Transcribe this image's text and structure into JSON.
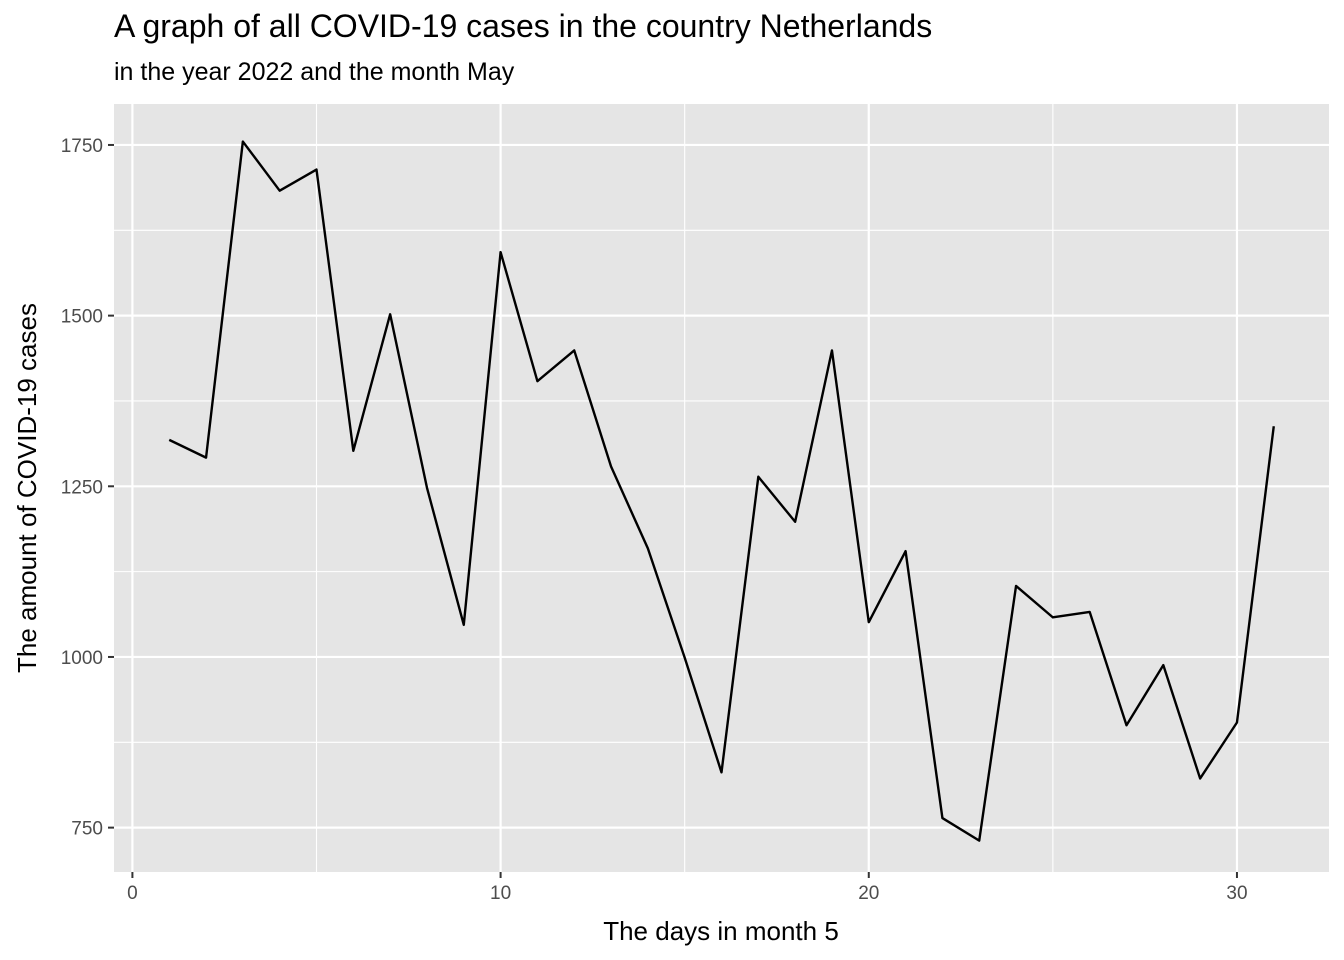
{
  "chart_data": {
    "type": "line",
    "title": "A graph of all COVID-19 cases in the country Netherlands",
    "subtitle": "in the year 2022 and the month May",
    "xlabel": "The days in month 5",
    "ylabel": "The amount of COVID-19 cases",
    "xlim": [
      -0.5,
      32.5
    ],
    "ylim": [
      685,
      1810
    ],
    "x_ticks": [
      0,
      10,
      20,
      30
    ],
    "y_ticks": [
      750,
      1000,
      1250,
      1500,
      1750
    ],
    "grid": true,
    "series": [
      {
        "x": [
          1,
          2,
          3,
          4,
          5,
          6,
          7,
          8,
          9,
          10,
          11,
          12,
          13,
          14,
          15,
          16,
          17,
          18,
          19,
          20,
          21,
          22,
          23,
          24,
          25,
          26,
          27,
          28,
          29,
          30,
          31
        ],
        "y": [
          1318,
          1292,
          1755,
          1683,
          1714,
          1302,
          1502,
          1248,
          1047,
          1593,
          1404,
          1449,
          1279,
          1159,
          999,
          831,
          1264,
          1198,
          1449,
          1051,
          1155,
          764,
          731,
          1104,
          1058,
          1066,
          900,
          988,
          822,
          904,
          1338
        ]
      }
    ],
    "colors": {
      "panel": "#e5e5e5",
      "grid": "#ffffff",
      "line": "#000000"
    }
  }
}
